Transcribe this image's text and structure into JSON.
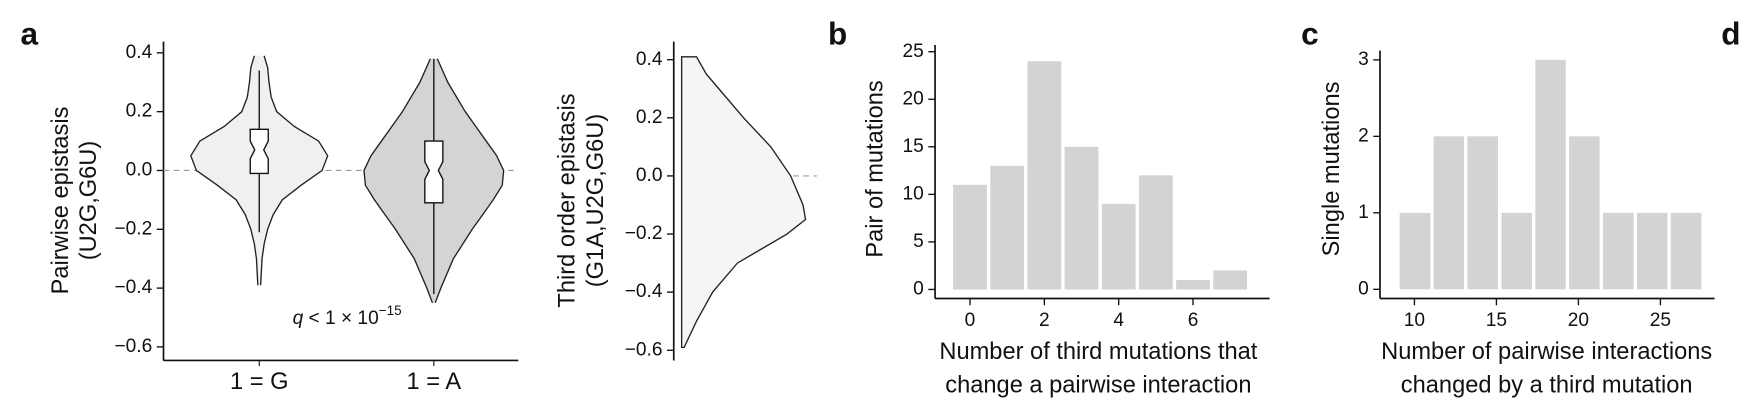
{
  "panel_labels": [
    "a",
    "b",
    "c",
    "d"
  ],
  "chart_data": [
    {
      "type": "violin",
      "ylabel": [
        "Pairwise epistasis",
        "(U2G,G6U)"
      ],
      "categories": [
        "1 = G",
        "1 = A"
      ],
      "annotation": [
        "q",
        " < 1 × 10",
        "−15"
      ],
      "ylim": [
        -0.646,
        0.438
      ],
      "yticks": [
        0.4,
        0.2,
        {
          "value": 0,
          "label": "0.0"
        },
        {
          "value": -0.2,
          "label": "−0.2"
        },
        {
          "value": -0.4,
          "label": "−0.4"
        },
        {
          "value": -0.6,
          "label": "−0.6"
        }
      ],
      "zero_line": true,
      "violins": [
        {
          "color": "#f0f0f0",
          "density_y": [
            0.39,
            0.35,
            0.3,
            0.25,
            0.2,
            0.15,
            0.1,
            0.05,
            0,
            -0.05,
            -0.1,
            -0.15,
            -0.2,
            -0.25,
            -0.3,
            -0.39
          ],
          "density": [
            0.07,
            0.12,
            0.14,
            0.17,
            0.25,
            0.5,
            0.85,
            0.98,
            0.9,
            0.6,
            0.33,
            0.2,
            0.12,
            0.07,
            0.04,
            0.02
          ],
          "whisker_low": -0.21,
          "q1": -0.01,
          "notch_low": 0.04,
          "median": 0.07,
          "notch_high": 0.1,
          "q3": 0.14,
          "whisker_high": 0.34
        },
        {
          "color": "#d4d4d4",
          "density_y": [
            0.38,
            0.3,
            0.2,
            0.1,
            0.05,
            0,
            -0.05,
            -0.1,
            -0.15,
            -0.2,
            -0.3,
            -0.4,
            -0.45
          ],
          "density": [
            0.05,
            0.2,
            0.45,
            0.75,
            0.9,
            1,
            0.98,
            0.85,
            0.7,
            0.55,
            0.28,
            0.1,
            0.02
          ],
          "whisker_low": -0.42,
          "q1": -0.11,
          "notch_low": -0.03,
          "median": 0,
          "notch_high": 0.03,
          "q3": 0.1,
          "whisker_high": 0.38
        }
      ]
    },
    {
      "type": "half_violin",
      "ylabel": [
        "Third order epistasis",
        "(G1A,U2G,G6U)"
      ],
      "ylim": [
        -0.635,
        0.462
      ],
      "yticks": [
        0.4,
        0.2,
        {
          "value": 0,
          "label": "0.0"
        },
        {
          "value": -0.2,
          "label": "−0.2"
        },
        {
          "value": -0.4,
          "label": "−0.4"
        },
        {
          "value": -0.6,
          "label": "−0.6"
        }
      ],
      "zero_line": true,
      "color": "#f5f5f5",
      "density_y": [
        0.41,
        0.35,
        0.3,
        0.2,
        0.1,
        0,
        -0.1,
        -0.15,
        -0.2,
        -0.3,
        -0.4,
        -0.5,
        -0.59
      ],
      "density": [
        0.12,
        0.2,
        0.3,
        0.5,
        0.72,
        0.88,
        0.98,
        1,
        0.85,
        0.45,
        0.25,
        0.12,
        0.02
      ]
    },
    {
      "type": "histogram",
      "ylabel": [
        "Pair of mutations"
      ],
      "xlabel": [
        "Number of third mutations that",
        "change a pairwise interaction"
      ],
      "bins": [
        -0.5,
        0.5,
        1.5,
        2.5,
        3.5,
        4.5,
        5.5,
        6.5,
        7.5
      ],
      "counts": [
        11,
        13,
        24,
        15,
        9,
        12,
        1,
        2
      ],
      "color": "#d3d3d3",
      "xlim": [
        -0.94,
        8.06
      ],
      "ylim": [
        -0.95,
        25.7
      ],
      "xticks": [
        0,
        2,
        4,
        6
      ],
      "yticks": [
        0,
        5,
        10,
        15,
        20,
        25
      ]
    },
    {
      "type": "histogram",
      "ylabel": [
        "Single mutations"
      ],
      "xlabel": [
        "Number of pairwise interactions",
        "changed by a third mutation"
      ],
      "bins": [
        9,
        11.07,
        13.13,
        15.2,
        17.27,
        19.33,
        21.4,
        23.47,
        25.53,
        27.6
      ],
      "counts": [
        1,
        2,
        2,
        1,
        3,
        2,
        1,
        1,
        1
      ],
      "color": "#d3d3d3",
      "xlim": [
        7.9,
        28.3
      ],
      "ylim": [
        -0.12,
        3.12
      ],
      "xticks": [
        10,
        15,
        20,
        25
      ],
      "yticks": [
        0,
        1,
        2,
        3
      ]
    }
  ]
}
